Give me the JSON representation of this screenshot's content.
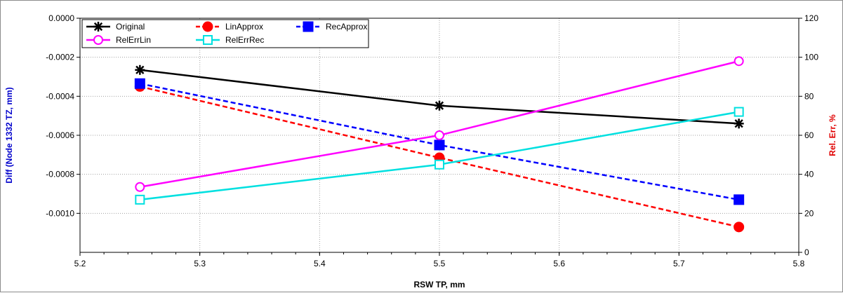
{
  "chart_data": {
    "type": "line",
    "x": [
      5.25,
      5.5,
      5.75
    ],
    "xlabel": "RSW TP, mm",
    "xlim": [
      5.2,
      5.8
    ],
    "xticks": [
      "5.2",
      "5.3",
      "5.4",
      "5.5",
      "5.6",
      "5.7",
      "5.8"
    ],
    "ylabel_left": "Diff (Node 1332 TZ, mm)",
    "ylim_left": [
      -0.0012,
      0.0
    ],
    "yticks_left": [
      "0.0000",
      "-0.0002",
      "-0.0004",
      "-0.0006",
      "-0.0008",
      "-0.0010"
    ],
    "ylabel_right": "Rel. Err, %",
    "ylim_right": [
      0,
      120
    ],
    "yticks_right": [
      "120",
      "100",
      "80",
      "60",
      "40",
      "20",
      "0"
    ],
    "grid": true,
    "legend_position": "top-left",
    "colors": {
      "left_axis_title": "#0000cc",
      "right_axis_title": "#e00000",
      "grid": "#a0a0a0"
    },
    "series": [
      {
        "name": "Original",
        "axis": "left",
        "values": [
          -0.000265,
          -0.000448,
          -0.00054
        ],
        "color": "#000000",
        "marker": "star",
        "dash": false
      },
      {
        "name": "LinApprox",
        "axis": "left",
        "values": [
          -0.00035,
          -0.000715,
          -0.00107
        ],
        "color": "#ff0000",
        "marker": "circle-filled",
        "dash": true
      },
      {
        "name": "RecApprox",
        "axis": "left",
        "values": [
          -0.000335,
          -0.00065,
          -0.00093
        ],
        "color": "#0000ff",
        "marker": "square-filled",
        "dash": true
      },
      {
        "name": "RelErrLin",
        "axis": "right",
        "values": [
          33.5,
          60,
          98
        ],
        "color": "#ff00ff",
        "marker": "circle-open",
        "dash": false
      },
      {
        "name": "RelErrRec",
        "axis": "right",
        "values": [
          27,
          45,
          72
        ],
        "color": "#00e0e0",
        "marker": "square-open",
        "dash": false
      }
    ]
  }
}
